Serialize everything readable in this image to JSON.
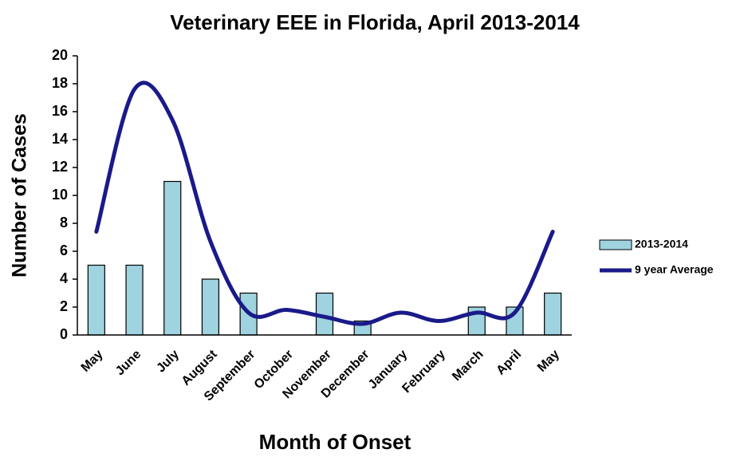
{
  "chart_data": {
    "type": "combo",
    "title": "Veterinary EEE in Florida, April 2013-2014",
    "x_label": "Month of Onset",
    "y_label": "Number of Cases",
    "categories": [
      "May",
      "June",
      "July",
      "August",
      "September",
      "October",
      "November",
      "December",
      "January",
      "February",
      "March",
      "April",
      "May"
    ],
    "series": [
      {
        "name": "2013-2014",
        "type": "bar",
        "color": "#9fd3e0",
        "values": [
          5,
          5,
          11,
          4,
          3,
          0,
          3,
          1,
          0,
          0,
          2,
          2,
          3
        ]
      },
      {
        "name": "9 year Average",
        "type": "line",
        "color": "#1a1a8a",
        "values": [
          7.4,
          17.6,
          15.4,
          6.7,
          1.6,
          1.8,
          1.3,
          0.8,
          1.6,
          1.0,
          1.6,
          1.6,
          7.4
        ]
      }
    ],
    "ylim": [
      0,
      20
    ],
    "yticks": [
      0,
      2,
      4,
      6,
      8,
      10,
      12,
      14,
      16,
      18,
      20
    ],
    "legend": "right"
  }
}
